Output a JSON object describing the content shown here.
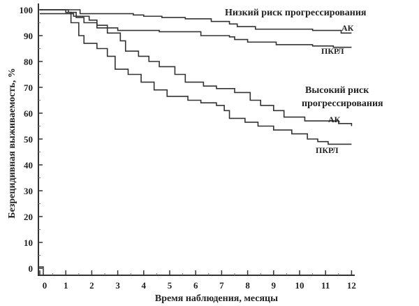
{
  "chart_data": {
    "type": "line",
    "step": true,
    "xlabel": "Время наблюдения, месяцы",
    "ylabel": "Безрецидивная выживаемость, %",
    "xlim": [
      0,
      12
    ],
    "ylim": [
      0,
      100
    ],
    "xticks": [
      "0",
      "1",
      "2",
      "3",
      "4",
      "5",
      "6",
      "7",
      "8",
      "9",
      "10",
      "11",
      "12"
    ],
    "yticks": [
      "0",
      "10",
      "20",
      "30",
      "40",
      "50",
      "60",
      "70",
      "80",
      "90",
      "100"
    ],
    "grid": false,
    "annotations": {
      "low_risk": "Низкий риск прогрессирования",
      "high_risk_line1": "Высокий риск",
      "high_risk_line2": "прогрессирования"
    },
    "series": [
      {
        "name": "АК",
        "group": "Низкий риск прогрессирования",
        "points": [
          [
            0,
            100
          ],
          [
            1.55,
            98.5
          ],
          [
            3.6,
            98
          ],
          [
            4,
            97.5
          ],
          [
            4.7,
            97
          ],
          [
            5.6,
            96.5
          ],
          [
            6.6,
            95.5
          ],
          [
            7.3,
            94.5
          ],
          [
            7.6,
            93.5
          ],
          [
            8.3,
            92.5
          ],
          [
            10.5,
            92
          ],
          [
            11.6,
            91
          ],
          [
            12,
            91
          ]
        ]
      },
      {
        "name": "ПКРЛ",
        "group": "Низкий риск прогрессирования",
        "points": [
          [
            0,
            98.5
          ],
          [
            1.3,
            97.5
          ],
          [
            1.9,
            96
          ],
          [
            2.2,
            94
          ],
          [
            2.6,
            93
          ],
          [
            3,
            92
          ],
          [
            4.6,
            91.5
          ],
          [
            6.2,
            90
          ],
          [
            7.3,
            89.5
          ],
          [
            7.5,
            88.5
          ],
          [
            8,
            87.5
          ],
          [
            9.1,
            86.5
          ],
          [
            10.5,
            86
          ],
          [
            11.3,
            85.5
          ],
          [
            12,
            85.5
          ]
        ]
      },
      {
        "name": "АК",
        "group": "Высокий риск прогрессирования",
        "points": [
          [
            0,
            100
          ],
          [
            1.1,
            99
          ],
          [
            1.4,
            97
          ],
          [
            1.7,
            95
          ],
          [
            2.2,
            93
          ],
          [
            2.6,
            91
          ],
          [
            3.1,
            88
          ],
          [
            3.3,
            84
          ],
          [
            3.8,
            82
          ],
          [
            4.2,
            80
          ],
          [
            4.6,
            78
          ],
          [
            5.2,
            75
          ],
          [
            5.6,
            72
          ],
          [
            6.3,
            70.5
          ],
          [
            6.8,
            69.5
          ],
          [
            7.5,
            68
          ],
          [
            8.1,
            65
          ],
          [
            8.5,
            63
          ],
          [
            9,
            61
          ],
          [
            9.4,
            58.5
          ],
          [
            10.2,
            57
          ],
          [
            11.5,
            56
          ],
          [
            12,
            55
          ]
        ]
      },
      {
        "name": "ПКРЛ",
        "group": "Высокий риск прогрессирования",
        "points": [
          [
            0,
            100
          ],
          [
            1,
            99
          ],
          [
            1.2,
            95
          ],
          [
            1.5,
            90
          ],
          [
            1.7,
            87
          ],
          [
            2.2,
            85
          ],
          [
            2.6,
            82
          ],
          [
            2.9,
            77
          ],
          [
            3.4,
            75
          ],
          [
            3.9,
            72
          ],
          [
            4.4,
            69
          ],
          [
            4.9,
            66.5
          ],
          [
            5.7,
            65
          ],
          [
            6.2,
            64
          ],
          [
            6.8,
            63
          ],
          [
            7.1,
            61
          ],
          [
            7.3,
            58
          ],
          [
            7.9,
            56.5
          ],
          [
            8.4,
            55
          ],
          [
            9,
            53.5
          ],
          [
            9.7,
            52
          ],
          [
            10.3,
            50
          ],
          [
            10.7,
            49
          ],
          [
            11.1,
            48
          ],
          [
            12,
            48
          ]
        ]
      }
    ],
    "line_color": "#333333"
  }
}
